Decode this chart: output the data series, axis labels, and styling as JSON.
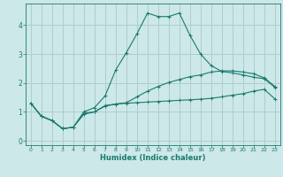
{
  "title": "",
  "xlabel": "Humidex (Indice chaleur)",
  "ylabel": "",
  "bg_color": "#cce8e8",
  "grid_color": "#b0cccc",
  "line_color": "#1a7a6e",
  "xlim": [
    -0.5,
    23.5
  ],
  "ylim": [
    -0.15,
    4.75
  ],
  "xticks": [
    0,
    1,
    2,
    3,
    4,
    5,
    6,
    7,
    8,
    9,
    10,
    11,
    12,
    13,
    14,
    15,
    16,
    17,
    18,
    19,
    20,
    21,
    22,
    23
  ],
  "yticks": [
    0,
    1,
    2,
    3,
    4
  ],
  "curve1_x": [
    0,
    1,
    2,
    3,
    4,
    5,
    6,
    7,
    8,
    9,
    10,
    11,
    12,
    13,
    14,
    15,
    16,
    17,
    18,
    19,
    20,
    21,
    22,
    23
  ],
  "curve1_y": [
    1.3,
    0.85,
    0.7,
    0.42,
    0.47,
    0.95,
    1.0,
    1.2,
    1.27,
    1.3,
    1.32,
    1.34,
    1.36,
    1.38,
    1.4,
    1.42,
    1.44,
    1.47,
    1.52,
    1.58,
    1.63,
    1.72,
    1.78,
    1.45
  ],
  "curve2_x": [
    0,
    1,
    2,
    3,
    4,
    5,
    6,
    7,
    8,
    9,
    10,
    11,
    12,
    13,
    14,
    15,
    16,
    17,
    18,
    19,
    20,
    21,
    22,
    23
  ],
  "curve2_y": [
    1.3,
    0.85,
    0.7,
    0.42,
    0.47,
    1.0,
    1.15,
    1.55,
    2.45,
    3.05,
    3.7,
    4.42,
    4.3,
    4.3,
    4.42,
    3.65,
    3.0,
    2.6,
    2.4,
    2.35,
    2.28,
    2.2,
    2.15,
    1.85
  ],
  "curve3_x": [
    0,
    1,
    2,
    3,
    4,
    5,
    6,
    7,
    8,
    9,
    10,
    11,
    12,
    13,
    14,
    15,
    16,
    17,
    18,
    19,
    20,
    21,
    22,
    23
  ],
  "curve3_y": [
    1.3,
    0.85,
    0.7,
    0.42,
    0.47,
    0.92,
    1.0,
    1.22,
    1.27,
    1.32,
    1.52,
    1.72,
    1.88,
    2.02,
    2.12,
    2.22,
    2.28,
    2.38,
    2.42,
    2.42,
    2.38,
    2.32,
    2.18,
    1.88
  ]
}
